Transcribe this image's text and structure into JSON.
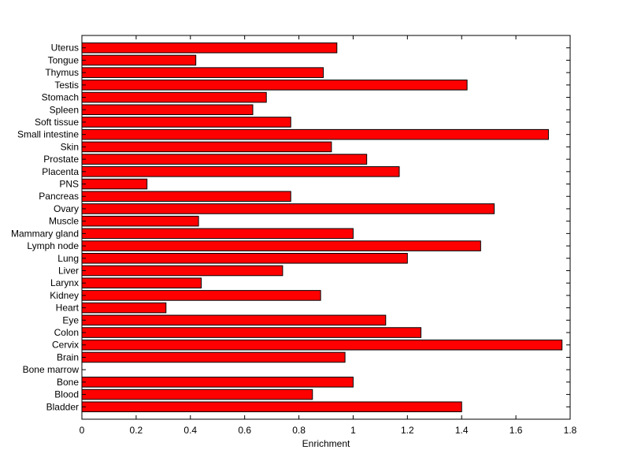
{
  "chart_data": {
    "type": "bar",
    "orientation": "horizontal",
    "title": "",
    "xlabel": "Enrichment",
    "ylabel": "",
    "xlim": [
      0,
      1.8
    ],
    "xticks": [
      0,
      0.2,
      0.4,
      0.6,
      0.8,
      1,
      1.2,
      1.4,
      1.6,
      1.8
    ],
    "xtick_labels": [
      "0",
      "0.2",
      "0.4",
      "0.6",
      "0.8",
      "1",
      "1.2",
      "1.4",
      "1.6",
      "1.8"
    ],
    "grid": false,
    "bar_color": "#ff0000",
    "bar_edge_color": "#000000",
    "categories": [
      "Bladder",
      "Blood",
      "Bone",
      "Bone marrow",
      "Brain",
      "Cervix",
      "Colon",
      "Eye",
      "Heart",
      "Kidney",
      "Larynx",
      "Liver",
      "Lung",
      "Lymph node",
      "Mammary gland",
      "Muscle",
      "Ovary",
      "Pancreas",
      "PNS",
      "Placenta",
      "Prostate",
      "Skin",
      "Small intestine",
      "Soft tissue",
      "Spleen",
      "Stomach",
      "Testis",
      "Thymus",
      "Tongue",
      "Uterus"
    ],
    "values": [
      1.4,
      0.85,
      1.0,
      0.0,
      0.97,
      1.77,
      1.25,
      1.12,
      0.31,
      0.88,
      0.44,
      0.74,
      1.2,
      1.47,
      1.0,
      0.43,
      1.52,
      0.77,
      0.24,
      1.17,
      1.05,
      0.92,
      1.72,
      0.77,
      0.63,
      0.68,
      1.42,
      0.89,
      0.42,
      0.94
    ]
  }
}
